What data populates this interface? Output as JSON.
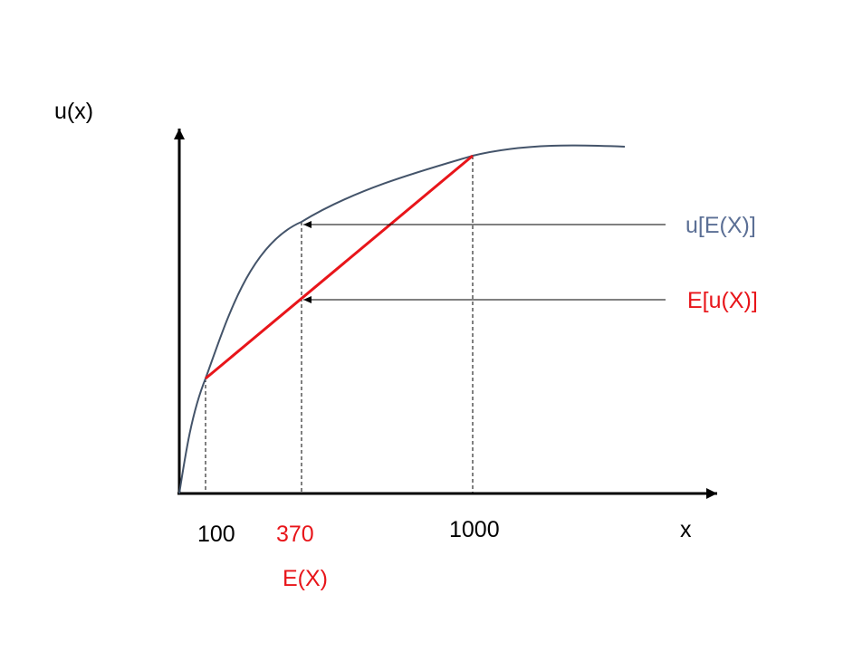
{
  "diagram": {
    "y_axis_label": "u(x)",
    "x_axis_label": "x",
    "x_tick_100": "100",
    "x_tick_370": "370",
    "x_tick_1000": "1000",
    "expected_x_label": "E(X)",
    "utility_of_expectation_label": "u[E(X)]",
    "expected_utility_label": "E[u(X)]"
  },
  "colors": {
    "curve": "#44546a",
    "chord": "#e8151a",
    "axis": "#000000",
    "label_blue": "#5b6f95",
    "label_red": "#e8151a"
  }
}
